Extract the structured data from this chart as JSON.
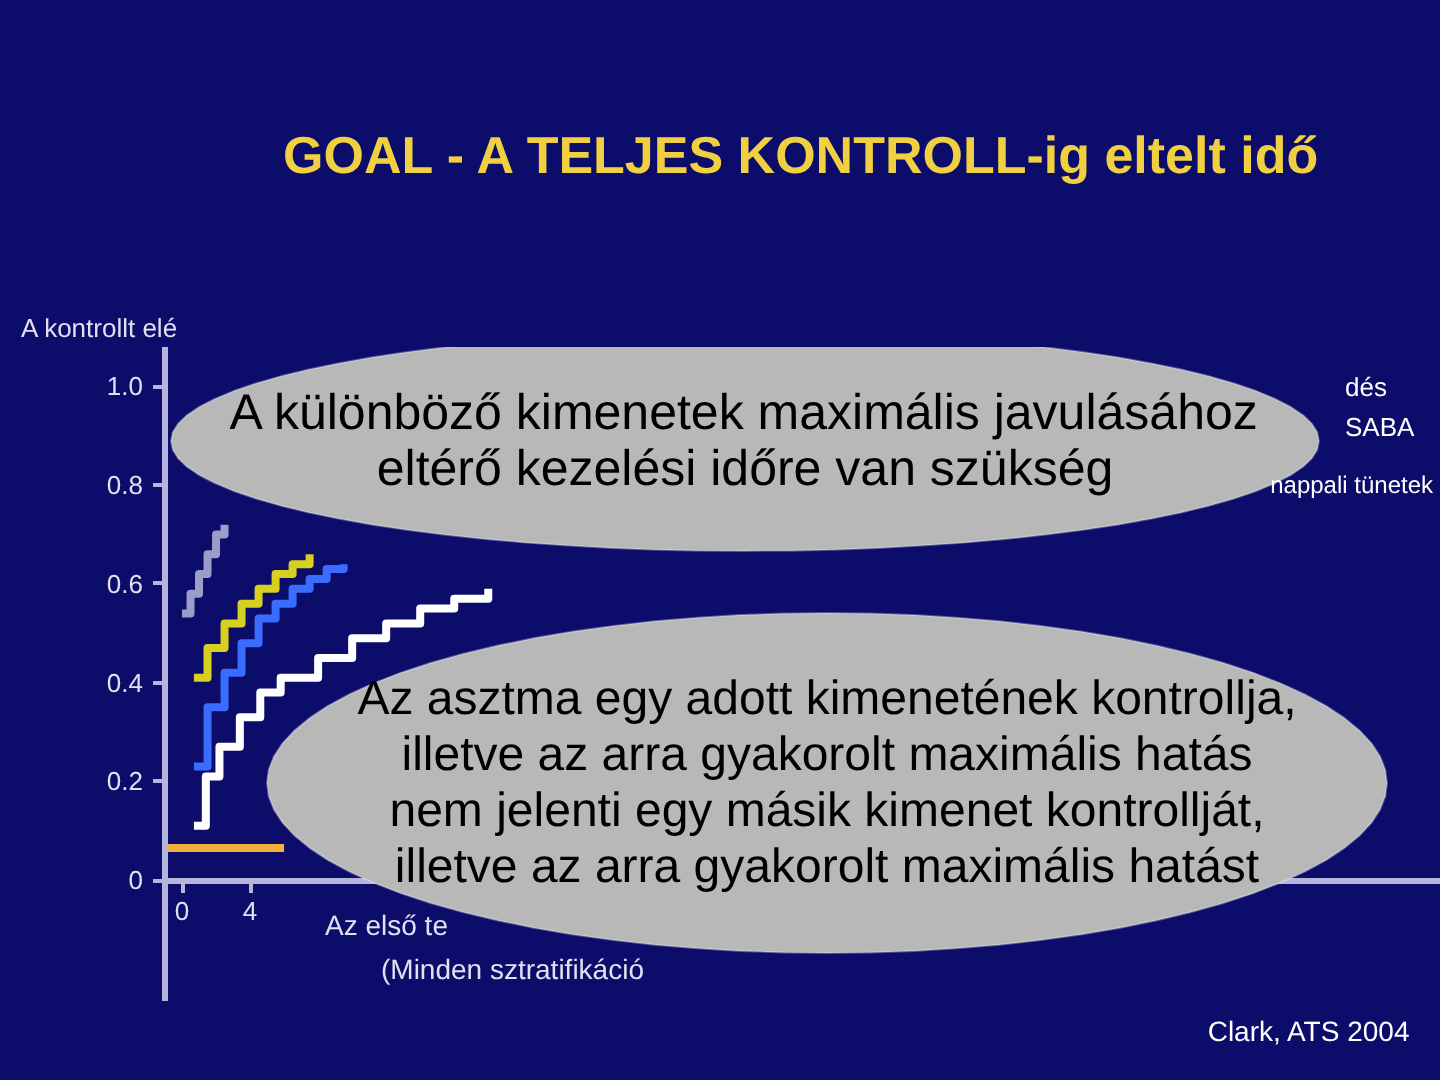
{
  "chart_data": {
    "type": "step",
    "title": "GOAL - A TELJES KONTROLL-ig eltelt idő",
    "ylabel": "A kontrollt elé",
    "annotations": [
      "A különböző kimenetek maximális javulásához\neltérő kezelési időre van szükség",
      "Az asztma egy adott kimenetének kontrollja,\nilletve az arra gyakorolt maximális hatás\nnem jelenti egy másik kimenet kontrollját,\nilletve az arra gyakorolt maximális hatást",
      "dés",
      "SABA",
      "nappali tünetek",
      "Az első te",
      "(Minden sztratifikáció",
      "Clark, ATS 2004"
    ],
    "xlim": [
      -1,
      74
    ],
    "ylim": [
      -0.245,
      1.08
    ],
    "xticks": [
      0,
      4
    ],
    "yticks": [
      0,
      0.2,
      0.4,
      0.6,
      0.8,
      {
        "value": 1,
        "label": "1.0"
      }
    ],
    "grid": false,
    "series": [
      {
        "color": "#9c9cc8",
        "x": [
          0,
          0.5,
          1,
          1.5,
          2,
          2.5
        ],
        "values": [
          0.54,
          0.58,
          0.62,
          0.66,
          0.7,
          0.72
        ]
      },
      {
        "color": "#d8d020",
        "x": [
          0.7,
          1.5,
          2.5,
          3.5,
          4.5,
          5.5,
          6.5,
          7.5
        ],
        "values": [
          0.41,
          0.47,
          0.52,
          0.56,
          0.59,
          0.62,
          0.64,
          0.66
        ]
      },
      {
        "color": "#3a6cff",
        "x": [
          0.7,
          1.5,
          2.5,
          3.5,
          4.5,
          5.5,
          6.5,
          7.5,
          8.5,
          9.5
        ],
        "values": [
          0.23,
          0.35,
          0.42,
          0.48,
          0.53,
          0.56,
          0.59,
          0.61,
          0.63,
          0.64
        ]
      },
      {
        "color": "#ffffff",
        "x": [
          0.7,
          1.4,
          2.2,
          3.4,
          4.6,
          5.8,
          8,
          10,
          12,
          14,
          16,
          18
        ],
        "values": [
          0.11,
          0.21,
          0.27,
          0.33,
          0.38,
          0.41,
          0.45,
          0.49,
          0.52,
          0.55,
          0.57,
          0.59
        ]
      },
      {
        "type": "line",
        "color": "#f0b040",
        "x": [
          -1,
          6
        ],
        "values": [
          0.065,
          0.065
        ]
      }
    ]
  }
}
